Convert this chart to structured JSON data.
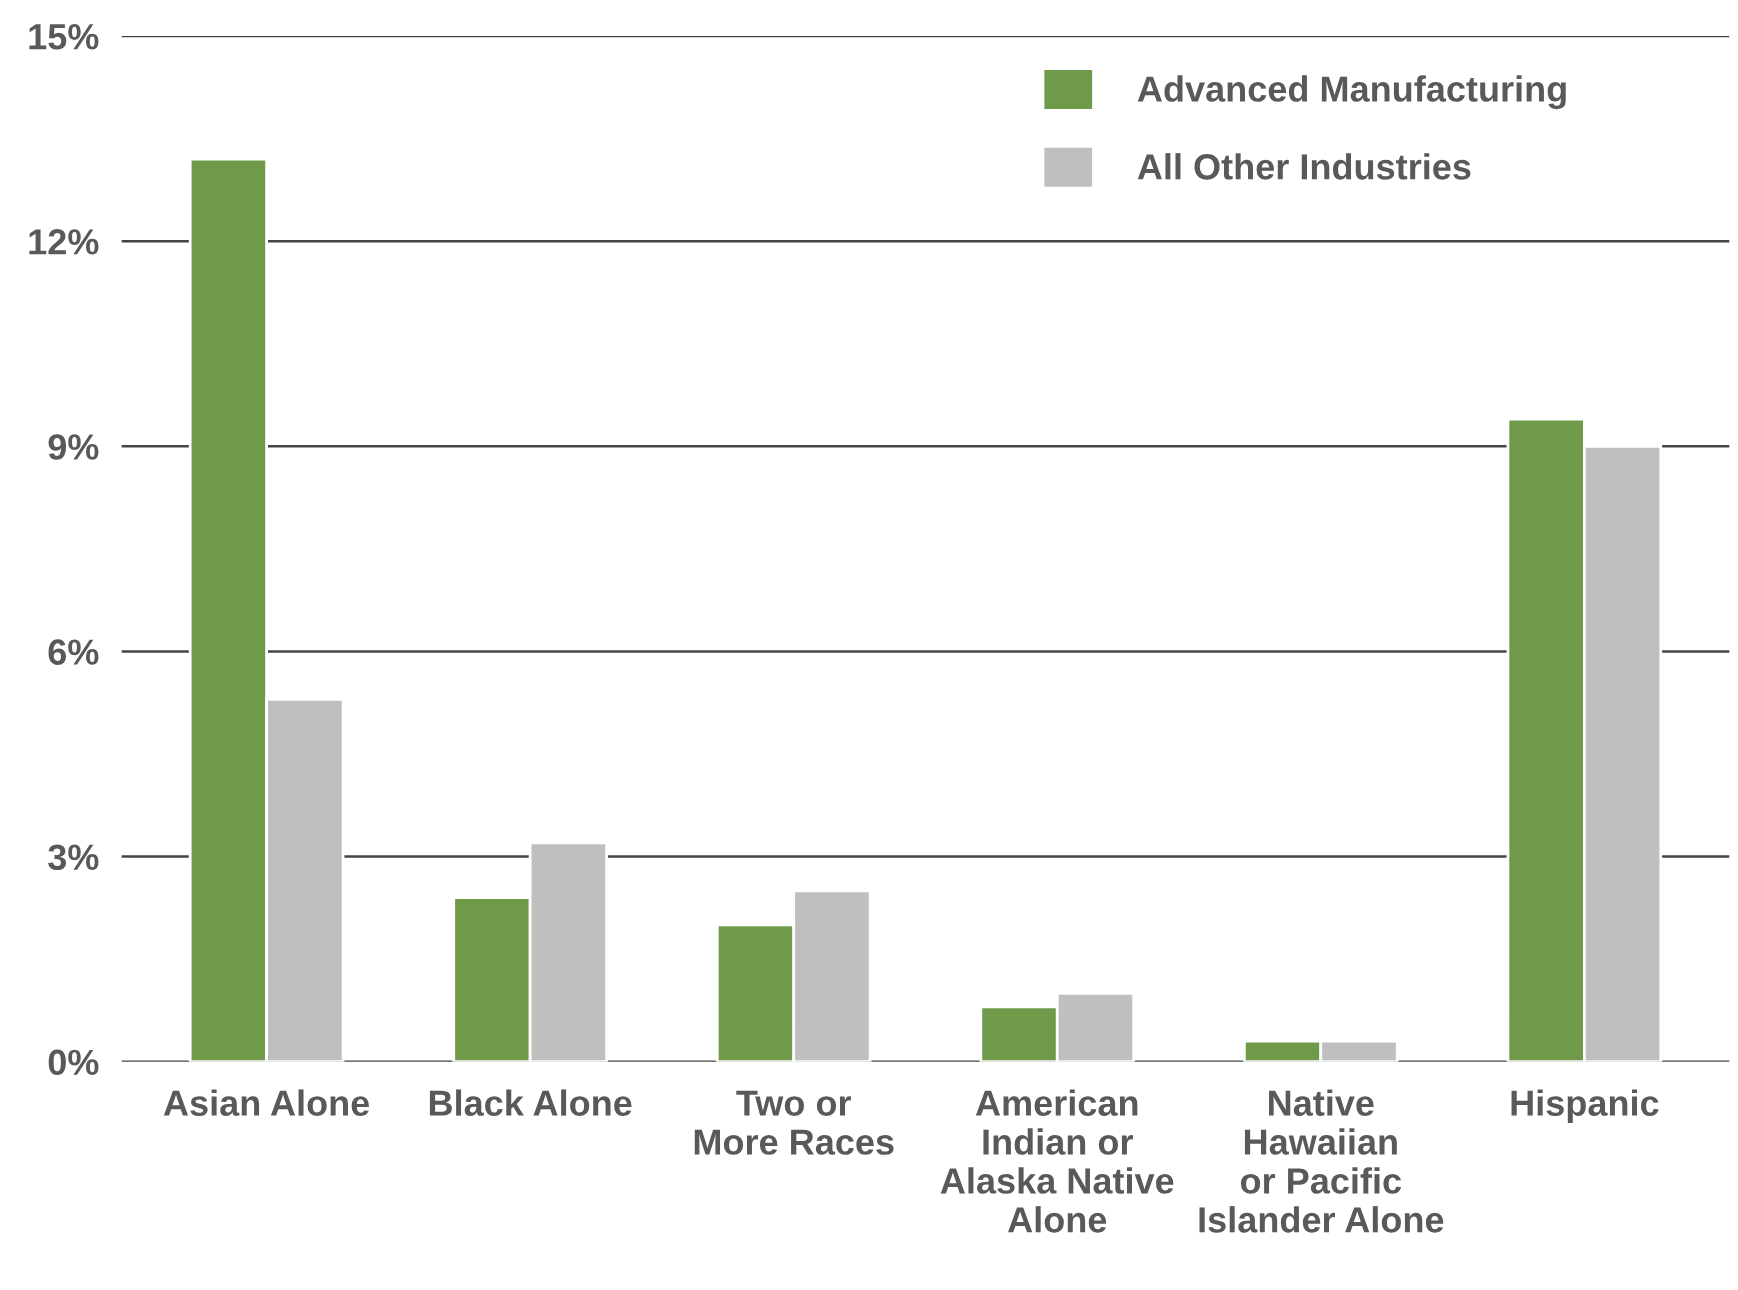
{
  "chart_data": {
    "type": "bar",
    "categories": [
      "Asian Alone",
      "Black Alone",
      "Two or\nMore Races",
      "American\nIndian or\nAlaska Native\nAlone",
      "Native\nHawaiian\nor Pacific\nIslander Alone",
      "Hispanic"
    ],
    "series": [
      {
        "name": "Advanced Manufacturing",
        "color": "#6f9a4a",
        "values": [
          13.2,
          2.4,
          2.0,
          0.8,
          0.3,
          9.4
        ]
      },
      {
        "name": "All Other Industries",
        "color": "#bfbfbf",
        "values": [
          5.3,
          3.2,
          2.5,
          1.0,
          0.3,
          9.0
        ]
      }
    ],
    "ylim": [
      0,
      15
    ],
    "yticks": [
      {
        "value": 0,
        "label": "0%"
      },
      {
        "value": 3,
        "label": "3%"
      },
      {
        "value": 6,
        "label": "6%"
      },
      {
        "value": 9,
        "label": "9%"
      },
      {
        "value": 12,
        "label": "12%"
      },
      {
        "value": 15,
        "label": "15%"
      }
    ],
    "grid": "y",
    "legend": "top right"
  }
}
